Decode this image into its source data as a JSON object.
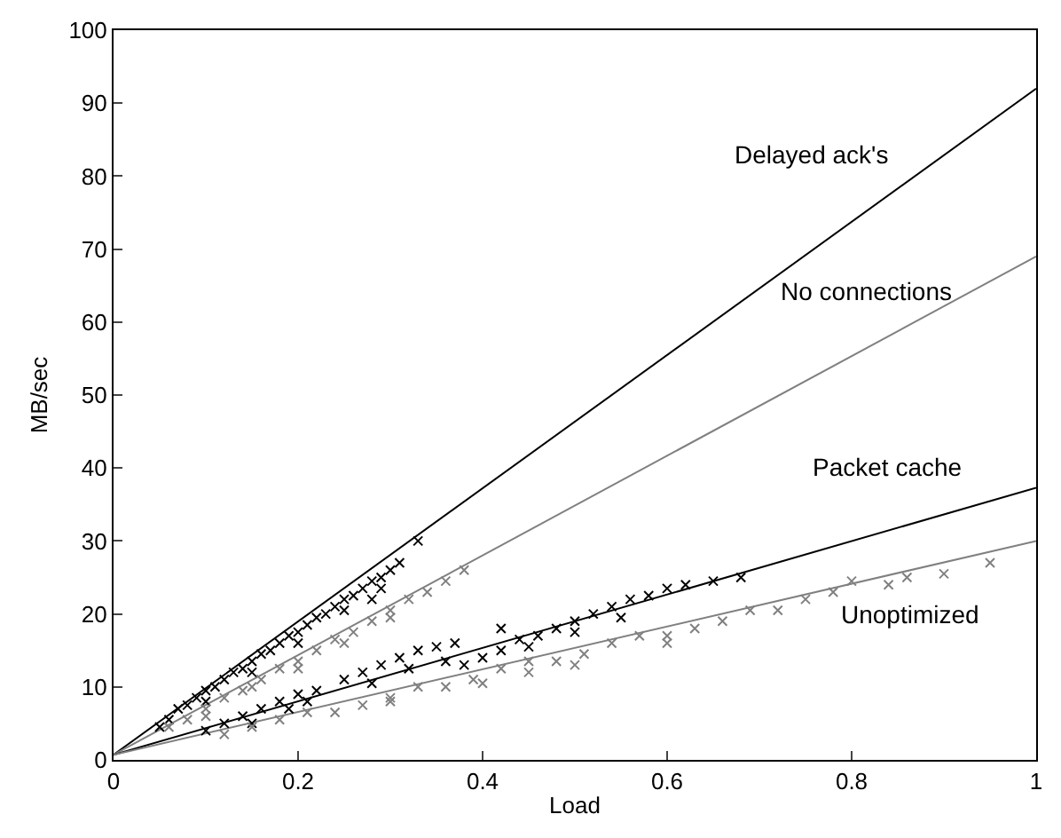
{
  "chart_data": {
    "type": "scatter",
    "xlabel": "Load",
    "ylabel": "MB/sec",
    "xlim": [
      0,
      1
    ],
    "ylim": [
      0,
      100
    ],
    "xticks": [
      0,
      0.2,
      0.4,
      0.6,
      0.8,
      1
    ],
    "yticks": [
      0,
      10,
      20,
      30,
      40,
      50,
      60,
      70,
      80,
      90,
      100
    ],
    "legend": false,
    "marker": "cross",
    "series": [
      {
        "color": "#000000",
        "x": [
          0.05,
          0.06,
          0.07,
          0.08,
          0.09,
          0.1,
          0.11,
          0.12,
          0.13,
          0.14,
          0.15,
          0.16,
          0.17,
          0.18,
          0.19,
          0.2,
          0.21,
          0.22,
          0.23,
          0.24,
          0.25,
          0.26,
          0.27,
          0.28,
          0.29,
          0.3,
          0.31,
          0.33,
          0.28,
          0.29,
          0.1,
          0.15,
          0.2,
          0.25
        ],
        "values": [
          4.5,
          5.5,
          7,
          7.5,
          8.5,
          9.5,
          10,
          11,
          12,
          12.5,
          13.5,
          14.5,
          15,
          16,
          17,
          17.5,
          18.5,
          19.5,
          20,
          21,
          22,
          22.5,
          23.5,
          24.5,
          25,
          26,
          27,
          30,
          22,
          23.5,
          8,
          12,
          16,
          20.5
        ]
      },
      {
        "color": "#808080",
        "x": [
          0.06,
          0.08,
          0.1,
          0.12,
          0.14,
          0.16,
          0.18,
          0.2,
          0.22,
          0.24,
          0.26,
          0.28,
          0.3,
          0.32,
          0.34,
          0.36,
          0.38,
          0.1,
          0.15,
          0.2,
          0.25,
          0.3
        ],
        "values": [
          4.5,
          5.5,
          7,
          8.5,
          9.5,
          11,
          12.5,
          13.5,
          15,
          16.5,
          17.5,
          19,
          20.5,
          22,
          23,
          24.5,
          26,
          6,
          10,
          12.5,
          16,
          19.5
        ]
      },
      {
        "color": "#000000",
        "x": [
          0.1,
          0.12,
          0.14,
          0.16,
          0.18,
          0.2,
          0.22,
          0.15,
          0.19,
          0.21,
          0.25,
          0.27,
          0.29,
          0.31,
          0.33,
          0.35,
          0.37,
          0.28,
          0.32,
          0.36,
          0.4,
          0.42,
          0.44,
          0.46,
          0.48,
          0.5,
          0.52,
          0.54,
          0.56,
          0.58,
          0.6,
          0.45,
          0.5,
          0.55,
          0.62,
          0.65,
          0.68,
          0.38,
          0.42
        ],
        "values": [
          4,
          5,
          6,
          7,
          8,
          9,
          9.5,
          5,
          7,
          8,
          11,
          12,
          13,
          14,
          15,
          15.5,
          16,
          10.5,
          12.5,
          13.5,
          14,
          15,
          16.5,
          17,
          18,
          19,
          20,
          21,
          22,
          22.5,
          23.5,
          15.5,
          17.5,
          19.5,
          24,
          24.5,
          25,
          13,
          18
        ]
      },
      {
        "color": "#808080",
        "x": [
          0.12,
          0.15,
          0.18,
          0.21,
          0.24,
          0.27,
          0.3,
          0.33,
          0.36,
          0.39,
          0.42,
          0.45,
          0.48,
          0.51,
          0.54,
          0.57,
          0.6,
          0.63,
          0.66,
          0.69,
          0.72,
          0.75,
          0.78,
          0.8,
          0.84,
          0.86,
          0.9,
          0.95,
          0.3,
          0.4,
          0.5,
          0.6,
          0.45
        ],
        "values": [
          3.5,
          4.5,
          5.5,
          6.5,
          6.5,
          7.5,
          8.5,
          10,
          10,
          11,
          12.5,
          13.5,
          13.5,
          14.5,
          16,
          17,
          17,
          18,
          19,
          20.5,
          20.5,
          22,
          23,
          24.5,
          24,
          25,
          25.5,
          27,
          8,
          10.5,
          13,
          16,
          12
        ]
      },
      {
        "type": "line",
        "name": "Delayed ack's",
        "color": "#000000",
        "marker": "none",
        "x": [
          0,
          1
        ],
        "values": [
          0.7,
          92
        ]
      },
      {
        "type": "line",
        "name": "No connections",
        "color": "#808080",
        "marker": "none",
        "x": [
          0,
          1
        ],
        "values": [
          0.7,
          69
        ]
      },
      {
        "type": "line",
        "name": "Packet cache",
        "color": "#000000",
        "marker": "none",
        "x": [
          0,
          1
        ],
        "values": [
          0.7,
          37.3
        ]
      },
      {
        "type": "line",
        "name": "Unoptimized",
        "color": "#808080",
        "marker": "none",
        "x": [
          0,
          1
        ],
        "values": [
          0.7,
          30
        ]
      }
    ]
  }
}
